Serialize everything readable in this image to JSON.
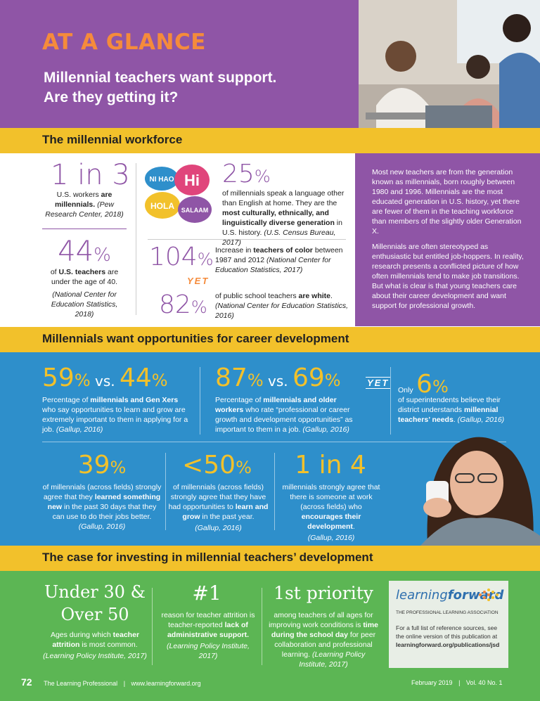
{
  "header": {
    "kicker": "AT A GLANCE",
    "headline_line1": "Millennial teachers want support.",
    "headline_line2": "Are they getting it?"
  },
  "workforce": {
    "band_title": "The millennial workforce",
    "stat1": {
      "value": "1 in 3",
      "text_a": "U.S. workers ",
      "text_b": "are millennials.",
      "source": "(Pew Research Center, 2018)"
    },
    "stat2": {
      "value": "44",
      "pct": "%",
      "text_a": "of ",
      "text_b": "U.S. teachers",
      "text_c": " are under the age of 40.",
      "source": "(National Center for Education Statistics, 2018)"
    },
    "bubbles": {
      "nihao": "NI HAO",
      "hi": "Hi",
      "hola": "HOLA",
      "salaam": "SALAAM"
    },
    "stat3": {
      "value": "25",
      "pct": "%",
      "text_a": "of millennials speak a language other than English at home. They are the ",
      "text_b": "most culturally, ethnically, and linguistically diverse generation",
      "text_c": " in U.S. history. ",
      "source": "(U.S. Census Bureau, 2017)"
    },
    "stat4": {
      "value": "104",
      "pct": "%",
      "text_a": "Increase in ",
      "text_b": "teachers of color",
      "text_c": " between 1987 and 2012 ",
      "source": "(National Center for Education Statistics, 2017)"
    },
    "yet": "YET",
    "stat5": {
      "value": "82",
      "pct": "%",
      "text_a": "of public school teachers ",
      "text_b": "are white",
      "text_c": ". ",
      "source": "(National Center for Education Statistics, 2016)"
    },
    "side_p1": "Most new teachers are from the generation known as millennials, born roughly between 1980 and 1996. Millennials are the most educated generation in U.S. history, yet there are fewer of them in the teaching workforce than members of the slightly older Generation X.",
    "side_p2": "Millennials are often stereotyped as enthusiastic but entitled job-hoppers. In reality, research presents a conflicted picture of how often millennials tend to make job transitions. But what is clear is that young teachers care about their career development and want support for professional growth."
  },
  "career": {
    "band_title": "Millennials want opportunities for career development",
    "s1": {
      "a": "59",
      "b": "44",
      "pct": "%",
      "vs": " vs. ",
      "text_a": "Percentage of ",
      "text_b": "millennials and Gen Xers",
      "text_c": " who say opportunities to learn and grow are extremely important to them in applying for a job. ",
      "source": "(Gallup, 2016)"
    },
    "s2": {
      "a": "87",
      "b": "69",
      "pct": "%",
      "vs": " vs. ",
      "text_a": "Percentage of ",
      "text_b": "millennials and older workers",
      "text_c": " who rate “professional or career growth and development opportunities” as important to them in a job. ",
      "source": "(Gallup, 2016)"
    },
    "yet": "YET",
    "s3": {
      "only": "Only",
      "value": "6",
      "pct": "%",
      "text_a": "of superintendents believe their district understands ",
      "text_b": "millennial teachers’ needs",
      "text_c": ". ",
      "source": "(Gallup, 2016)"
    },
    "s4": {
      "value": "39",
      "pct": "%",
      "text_a": "of millennials (across fields) strongly agree that they ",
      "text_b": "learned something new",
      "text_c": " in the past 30 days that they can use to do their jobs better. ",
      "source": "(Gallup, 2016)"
    },
    "s5": {
      "value": "<50",
      "pct": "%",
      "text_a": "of millennials (across fields) strongly agree that they have had opportunities to ",
      "text_b": "learn and grow",
      "text_c": " in the past year.",
      "source": "(Gallup, 2016)"
    },
    "s6": {
      "value": "1 in 4",
      "text_a": "millennials strongly agree that there is someone at work (across fields) who ",
      "text_b": "encourages their development",
      "text_c": ".",
      "source": "(Gallup, 2016)"
    }
  },
  "case": {
    "band_title": "The case for investing in millennial teachers’ development",
    "c1": {
      "value_l1": "Under 30 &",
      "value_l2": "Over 50",
      "text_a": "Ages during which ",
      "text_b": "teacher attrition",
      "text_c": " is most common.",
      "source": "(Learning Policy Institute, 2017)"
    },
    "c2": {
      "value": "#1",
      "text_a": "reason for teacher attrition is teacher-reported ",
      "text_b": "lack of administrative support.",
      "source": "(Learning Policy Institute, 2017)"
    },
    "c3": {
      "value": "1st priority",
      "text_a": "among teachers of all ages for improving work conditions is ",
      "text_b": "time during the school day",
      "text_c": " for peer collaboration and professional learning. ",
      "source": "(Learning Policy Institute, 2017)"
    },
    "lf": {
      "logo_a": "learning",
      "logo_b": "forward",
      "tagline": "THE PROFESSIONAL LEARNING ASSOCIATION",
      "note": "For a full list of reference sources, see the online version of this publication at ",
      "url": "learningforward.org/publications/jsd"
    }
  },
  "footer": {
    "page": "72",
    "pub": "The Learning Professional",
    "sep": "|",
    "site": "www.learningforward.org",
    "date": "February 2019",
    "vol": "Vol. 40 No. 1"
  },
  "colors": {
    "purple": "#8f55a6",
    "yellow": "#f2c12b",
    "blue": "#2e8fcb",
    "green": "#5cb654",
    "orange": "#f58b3b"
  }
}
